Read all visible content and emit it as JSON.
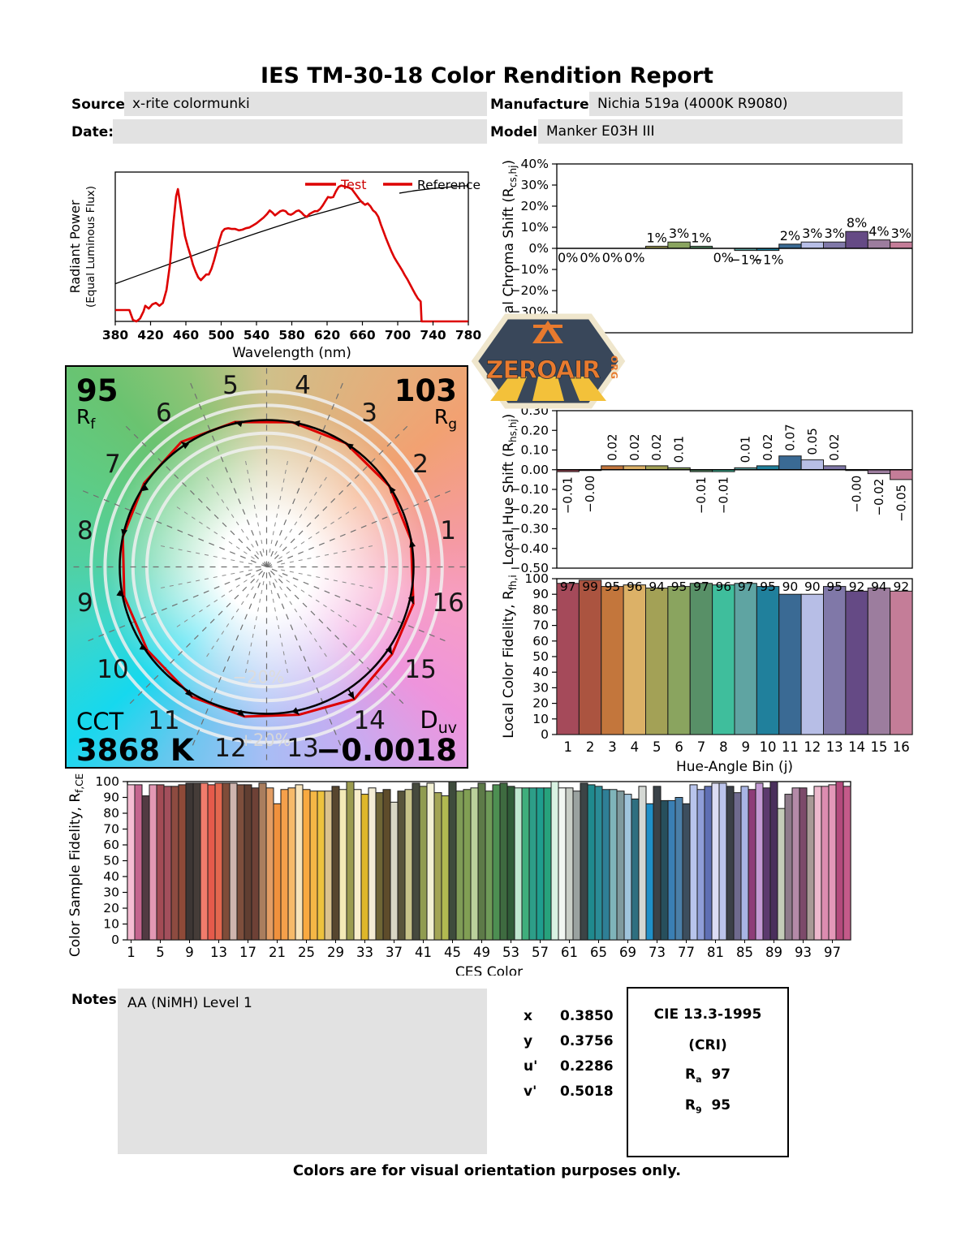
{
  "report": {
    "title": "IES TM-30-18 Color Rendition Report",
    "fields": {
      "source_label": "Source:",
      "source": "x-rite colormunki",
      "date_label": "Date:",
      "date": "",
      "manufacturer_label": "Manufacturer:",
      "manufacturer": "Nichia 519a (4000K R9080)",
      "model_label": "Model:",
      "model": "Manker E03H III"
    },
    "notes_label": "Notes:",
    "notes": "AA (NiMH) Level 1",
    "footer": "Colors are for visual orientation purposes only.",
    "chromaticity": {
      "rows": [
        {
          "label": "x",
          "value": "0.3850"
        },
        {
          "label": "y",
          "value": "0.3756"
        },
        {
          "label": "u'",
          "value": "0.2286"
        },
        {
          "label": "v'",
          "value": "0.5018"
        }
      ]
    },
    "cri_box": {
      "title": "CIE 13.3-1995",
      "subtitle": "(CRI)",
      "rows": [
        {
          "label": "R",
          "sub": "a",
          "value": "97"
        },
        {
          "label": "R",
          "sub": "9",
          "value": "95"
        }
      ]
    },
    "watermark": {
      "text": "ZEROAIR",
      "suffix": "ORG",
      "badge_color": "#39475a",
      "accent": "#e87a2e",
      "ray_color": "#f3c13a",
      "rim_color": "#efe6cc"
    }
  },
  "hue_bin_colors": [
    "#a54a5a",
    "#ab5440",
    "#c3763c",
    "#dcb167",
    "#a3a156",
    "#8aa45f",
    "#589067",
    "#3fbe9c",
    "#5fa4a2",
    "#20809c",
    "#3a6a94",
    "#b7bee6",
    "#8078a8",
    "#654a85",
    "#9c7d9e",
    "#c47d98"
  ],
  "cvg": {
    "rf_value": "95",
    "rf_label": "R",
    "rf_sub": "f",
    "rg_value": "103",
    "rg_label": "R",
    "rg_sub": "g",
    "cct_label": "CCT",
    "cct_value": "3868 K",
    "duv_label": "D",
    "duv_sub": "uv",
    "duv_value": "−0.0018",
    "inner_ring_label": "−20%",
    "outer_ring_label": "+20%",
    "bin_numbers": [
      "1",
      "2",
      "3",
      "4",
      "5",
      "6",
      "7",
      "8",
      "9",
      "10",
      "11",
      "12",
      "13",
      "14",
      "15",
      "16"
    ],
    "chroma_mult": [
      1.0,
      1.0,
      1.0,
      1.0,
      1.01,
      1.03,
      1.01,
      1.0,
      0.99,
      0.99,
      1.02,
      1.03,
      1.03,
      1.08,
      1.04,
      1.03
    ],
    "hue_offset_rad": [
      -0.01,
      -0.004,
      0.02,
      0.02,
      0.02,
      0.01,
      -0.01,
      -0.01,
      0.01,
      0.02,
      0.07,
      0.05,
      0.02,
      -0.004,
      -0.02,
      -0.05
    ],
    "test_color": "#dd0000",
    "reference_color": "#000000"
  },
  "chart_data": [
    {
      "id": "spd",
      "type": "line",
      "xlabel": "Wavelength (nm)",
      "ylabel_lines": [
        "Radiant Power",
        "(Equal Luminous Flux)"
      ],
      "xlim": [
        380,
        780
      ],
      "ylim": [
        0,
        1.05
      ],
      "xticks": [
        380,
        420,
        460,
        500,
        540,
        580,
        620,
        660,
        700,
        740,
        780
      ],
      "legend": [
        {
          "label": "Test",
          "text_color": "#cc0000"
        },
        {
          "label": "Reference",
          "text_color": "#000000"
        }
      ],
      "series": [
        {
          "name": "Reference",
          "color": "#000000",
          "width": 1.3,
          "points": [
            [
              380,
              0.265
            ],
            [
              400,
              0.31
            ],
            [
              420,
              0.355
            ],
            [
              440,
              0.4
            ],
            [
              460,
              0.445
            ],
            [
              480,
              0.49
            ],
            [
              500,
              0.535
            ],
            [
              520,
              0.578
            ],
            [
              540,
              0.62
            ],
            [
              560,
              0.66
            ],
            [
              580,
              0.7
            ],
            [
              600,
              0.74
            ],
            [
              620,
              0.775
            ],
            [
              640,
              0.81
            ],
            [
              660,
              0.845
            ],
            [
              680,
              0.875
            ],
            [
              700,
              0.9
            ],
            [
              720,
              0.92
            ],
            [
              740,
              0.935
            ],
            [
              760,
              0.945
            ],
            [
              780,
              0.955
            ]
          ]
        },
        {
          "name": "Test",
          "color": "#dd0000",
          "width": 2.6,
          "points": [
            [
              380,
              0.08
            ],
            [
              396,
              0.08
            ],
            [
              400,
              0.01
            ],
            [
              404,
              0.0
            ],
            [
              408,
              0.02
            ],
            [
              412,
              0.07
            ],
            [
              414,
              0.11
            ],
            [
              418,
              0.09
            ],
            [
              422,
              0.12
            ],
            [
              426,
              0.13
            ],
            [
              430,
              0.11
            ],
            [
              434,
              0.13
            ],
            [
              438,
              0.22
            ],
            [
              442,
              0.4
            ],
            [
              446,
              0.7
            ],
            [
              449,
              0.88
            ],
            [
              451,
              0.93
            ],
            [
              453,
              0.85
            ],
            [
              456,
              0.72
            ],
            [
              459,
              0.6
            ],
            [
              462,
              0.53
            ],
            [
              465,
              0.47
            ],
            [
              468,
              0.4
            ],
            [
              471,
              0.35
            ],
            [
              474,
              0.31
            ],
            [
              477,
              0.29
            ],
            [
              480,
              0.31
            ],
            [
              483,
              0.33
            ],
            [
              486,
              0.33
            ],
            [
              489,
              0.37
            ],
            [
              492,
              0.43
            ],
            [
              495,
              0.5
            ],
            [
              498,
              0.57
            ],
            [
              501,
              0.63
            ],
            [
              504,
              0.65
            ],
            [
              508,
              0.655
            ],
            [
              512,
              0.65
            ],
            [
              516,
              0.65
            ],
            [
              520,
              0.64
            ],
            [
              524,
              0.645
            ],
            [
              528,
              0.655
            ],
            [
              532,
              0.66
            ],
            [
              536,
              0.675
            ],
            [
              540,
              0.69
            ],
            [
              544,
              0.71
            ],
            [
              548,
              0.73
            ],
            [
              552,
              0.755
            ],
            [
              555,
              0.78
            ],
            [
              558,
              0.765
            ],
            [
              561,
              0.745
            ],
            [
              564,
              0.76
            ],
            [
              567,
              0.775
            ],
            [
              570,
              0.78
            ],
            [
              573,
              0.775
            ],
            [
              576,
              0.755
            ],
            [
              579,
              0.75
            ],
            [
              582,
              0.76
            ],
            [
              585,
              0.775
            ],
            [
              588,
              0.78
            ],
            [
              591,
              0.765
            ],
            [
              594,
              0.745
            ],
            [
              597,
              0.735
            ],
            [
              600,
              0.755
            ],
            [
              603,
              0.765
            ],
            [
              606,
              0.775
            ],
            [
              609,
              0.775
            ],
            [
              612,
              0.79
            ],
            [
              615,
              0.815
            ],
            [
              618,
              0.845
            ],
            [
              621,
              0.875
            ],
            [
              624,
              0.87
            ],
            [
              627,
              0.875
            ],
            [
              630,
              0.915
            ],
            [
              633,
              0.945
            ],
            [
              636,
              0.955
            ],
            [
              639,
              0.95
            ],
            [
              642,
              0.945
            ],
            [
              645,
              0.94
            ],
            [
              648,
              0.93
            ],
            [
              651,
              0.905
            ],
            [
              654,
              0.88
            ],
            [
              657,
              0.855
            ],
            [
              660,
              0.835
            ],
            [
              663,
              0.82
            ],
            [
              666,
              0.83
            ],
            [
              669,
              0.81
            ],
            [
              672,
              0.78
            ],
            [
              675,
              0.765
            ],
            [
              678,
              0.735
            ],
            [
              681,
              0.68
            ],
            [
              684,
              0.63
            ],
            [
              687,
              0.58
            ],
            [
              690,
              0.535
            ],
            [
              693,
              0.49
            ],
            [
              696,
              0.45
            ],
            [
              699,
              0.42
            ],
            [
              702,
              0.39
            ],
            [
              705,
              0.36
            ],
            [
              708,
              0.325
            ],
            [
              711,
              0.295
            ],
            [
              714,
              0.26
            ],
            [
              717,
              0.225
            ],
            [
              720,
              0.19
            ],
            [
              723,
              0.16
            ],
            [
              726,
              0.14
            ],
            [
              727,
              0.0
            ],
            [
              740,
              0.0
            ],
            [
              780,
              0.0
            ]
          ]
        }
      ]
    },
    {
      "id": "chroma",
      "type": "bar",
      "ylabel_parts": [
        "Local Chroma Shift (R",
        "cs,hj",
        ")"
      ],
      "ylim": [
        -40,
        40
      ],
      "ytick_step": 10,
      "ytick_suffix": "%",
      "ytick_decimals": 0,
      "values": [
        0,
        0,
        0,
        0,
        1,
        3,
        1,
        0,
        -1,
        -1,
        2,
        3,
        3,
        8,
        4,
        3
      ],
      "labels": [
        "0%",
        "0%",
        "0%",
        "0%",
        "1%",
        "3%",
        "1%",
        "0%",
        "−1%",
        "−1%",
        "2%",
        "3%",
        "3%",
        "8%",
        "4%",
        "3%"
      ],
      "label_mode": "updown"
    },
    {
      "id": "hue",
      "type": "bar",
      "ylabel_parts": [
        "Local Hue Shift (R",
        "hs,hj",
        ")"
      ],
      "ylim": [
        -0.5,
        0.3
      ],
      "ytick_step": 0.1,
      "ytick_suffix": "",
      "ytick_decimals": 2,
      "values": [
        -0.01,
        -0.004,
        0.02,
        0.02,
        0.02,
        0.01,
        -0.01,
        -0.01,
        0.01,
        0.02,
        0.07,
        0.05,
        0.02,
        -0.004,
        -0.02,
        -0.05
      ],
      "labels": [
        "−0.01",
        "−0.00",
        "0.02",
        "0.02",
        "0.02",
        "0.01",
        "−0.01",
        "−0.01",
        "0.01",
        "0.02",
        "0.07",
        "0.05",
        "0.02",
        "−0.00",
        "−0.02",
        "−0.05"
      ],
      "label_mode": "rotated"
    },
    {
      "id": "fidelity",
      "type": "bar",
      "xlabel": "Hue-Angle Bin (j)",
      "ylabel_parts": [
        "Local Color Fidelity, R",
        "fh,i",
        ""
      ],
      "ylim": [
        0,
        100
      ],
      "ytick_step": 10,
      "ytick_suffix": "",
      "ytick_decimals": 0,
      "values": [
        97,
        99,
        95,
        96,
        94,
        95,
        97,
        96,
        97,
        95,
        90,
        90,
        95,
        92,
        94,
        92
      ],
      "labels": [
        "97",
        "99",
        "95",
        "96",
        "94",
        "95",
        "97",
        "96",
        "97",
        "95",
        "90",
        "90",
        "95",
        "92",
        "94",
        "92"
      ],
      "label_mode": "toprow",
      "xticks": {
        "labels": [
          "1",
          "2",
          "3",
          "4",
          "5",
          "6",
          "7",
          "8",
          "9",
          "10",
          "11",
          "12",
          "13",
          "14",
          "15",
          "16"
        ],
        "step": 1
      }
    },
    {
      "id": "ces",
      "type": "bar",
      "xlabel": "CES Color",
      "ylabel_parts": [
        "Color Sample Fidelity, R",
        "f,CESi",
        ""
      ],
      "ylim": [
        0,
        100
      ],
      "ytick_step": 10,
      "ytick_suffix": "",
      "ytick_decimals": 0,
      "values": [
        98,
        98,
        91,
        98,
        98,
        97,
        97,
        98,
        99,
        99,
        99,
        98,
        99,
        99,
        99,
        98,
        98,
        96,
        99,
        96,
        86,
        95,
        96,
        98,
        95,
        94,
        94,
        94,
        97,
        95,
        100,
        95,
        92,
        96,
        93,
        95,
        87,
        94,
        95,
        99,
        97,
        99,
        93,
        91,
        100,
        94,
        95,
        96,
        99,
        94,
        98,
        99,
        97,
        96,
        96,
        96,
        96,
        96,
        100,
        96,
        96,
        94,
        99,
        98,
        97,
        95,
        95,
        94,
        92,
        89,
        97,
        86,
        97,
        88,
        88,
        90,
        86,
        98,
        95,
        97,
        99,
        99,
        97,
        93,
        97,
        95,
        99,
        96,
        100,
        83,
        92,
        96,
        96,
        91,
        97,
        97,
        98,
        100,
        97
      ],
      "colors": [
        "#f5bcd2",
        "#c4648e",
        "#523a42",
        "#e398b4",
        "#a34b55",
        "#a34f5c",
        "#8d4b40",
        "#8f4a38",
        "#3d3634",
        "#453c38",
        "#f07c6c",
        "#e55a4b",
        "#e3674f",
        "#804c39",
        "#cfb5af",
        "#7d4e3c",
        "#603e31",
        "#6e4136",
        "#aa7e5e",
        "#e29d64",
        "#f0913d",
        "#f5a04b",
        "#f7ba6a",
        "#f8e4ba",
        "#f9a940",
        "#f5b746",
        "#edc23e",
        "#dbc28d",
        "#57462f",
        "#f4eab7",
        "#9c9c50",
        "#f8edca",
        "#deb72b",
        "#f4edd4",
        "#6f6635",
        "#5e4c2b",
        "#d8d6c4",
        "#59543b",
        "#c7c289",
        "#464a3e",
        "#909c50",
        "#f3f1d5",
        "#a2a455",
        "#b2ba51",
        "#3e4c3c",
        "#7f9c56",
        "#819f54",
        "#bbd19c",
        "#5d7a48",
        "#6f9a58",
        "#4d8f52",
        "#3e6b40",
        "#2f5c38",
        "#bfe8d0",
        "#3fae7c",
        "#2d9e88",
        "#1f9e8e",
        "#27a27c",
        "#d8f2e2",
        "#f2f7f2",
        "#c9cfc7",
        "#9aa2a0",
        "#3c4446",
        "#1f8a8e",
        "#2a8c96",
        "#2f7f96",
        "#7fb4ba",
        "#7f9a9e",
        "#9fc4dc",
        "#2f6f80",
        "#d4d8d4",
        "#2090c8",
        "#3a4248",
        "#274f5c",
        "#3a7fb4",
        "#4a7fa8",
        "#3c4e5e",
        "#b8c4ec",
        "#8f9ed8",
        "#5f6fb4",
        "#dcdcf4",
        "#bcc4ec",
        "#3c4048",
        "#6f6a8e",
        "#a8b4e4",
        "#8e3c78",
        "#c49ad4",
        "#5c3a6e",
        "#4a2f5c",
        "#c4ccb8",
        "#8e7a8a",
        "#b48aa8",
        "#7c4a6a",
        "#a89a96",
        "#ecb8cc",
        "#dc8cb0",
        "#e498b8",
        "#b44a7c",
        "#c45a8a"
      ],
      "label_mode": "none",
      "xticks": {
        "labels": [
          "1",
          "5",
          "9",
          "13",
          "17",
          "21",
          "25",
          "29",
          "33",
          "37",
          "41",
          "45",
          "49",
          "53",
          "57",
          "61",
          "65",
          "69",
          "73",
          "77",
          "81",
          "85",
          "89",
          "93",
          "97"
        ],
        "step": 4
      }
    }
  ]
}
